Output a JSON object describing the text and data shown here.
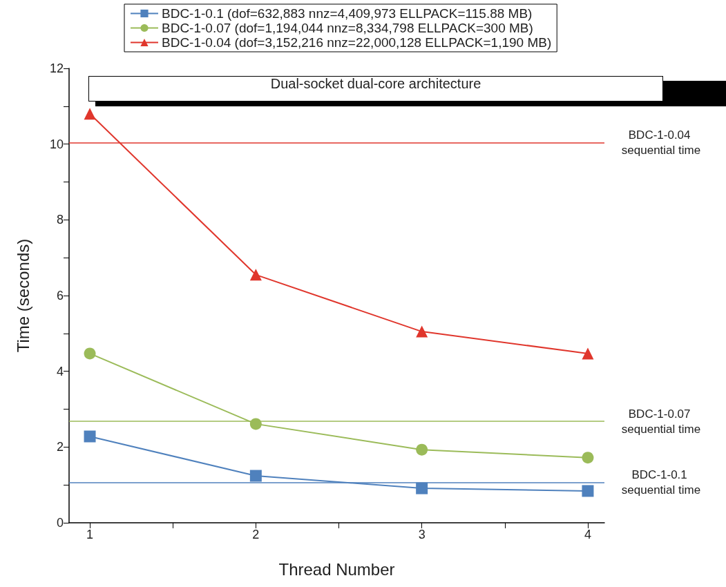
{
  "chart_data": {
    "type": "line",
    "xlabel": "Thread Number",
    "ylabel": "Time (seconds)",
    "x": [
      1,
      2,
      3,
      4
    ],
    "series": [
      {
        "name": "BDC-1-0.1 (dof=632,883 nnz=4,409,973 ELLPACK=115.88 MB)",
        "color": "#4f81bd",
        "marker": "square",
        "values": [
          2.28,
          1.24,
          0.91,
          0.84
        ]
      },
      {
        "name": "BDC-1-0.07 (dof=1,194,044 nnz=8,334,798 ELLPACK=300 MB)",
        "color": "#9bbb59",
        "marker": "circle",
        "values": [
          4.47,
          2.61,
          1.93,
          1.72
        ]
      },
      {
        "name": "BDC-1-0.04 (dof=3,152,216 nnz=22,000,128 ELLPACK=1,190 MB)",
        "color": "#e0362c",
        "marker": "triangle",
        "values": [
          10.8,
          6.55,
          5.05,
          4.47
        ]
      }
    ],
    "ref_lines": [
      {
        "axis": "y",
        "value": 10.04,
        "label": "BDC-1-0.04 sequential time",
        "color": "#e0362c"
      },
      {
        "axis": "y",
        "value": 2.68,
        "label": "BDC-1-0.07 sequential time",
        "color": "#9bbb59"
      },
      {
        "axis": "y",
        "value": 1.06,
        "label": "BDC-1-0.1 sequential time",
        "color": "#4f81bd"
      }
    ],
    "annotations": [
      "Dual-socket dual-core architecture"
    ],
    "xlim": [
      0.875,
      4.1
    ],
    "xticks": [
      1,
      {
        "value": 1.5,
        "label": null
      },
      2,
      {
        "value": 2.5,
        "label": null
      },
      3,
      {
        "value": 3.5,
        "label": null
      },
      4
    ],
    "ylim": [
      0,
      12
    ],
    "yticks": [
      0,
      {
        "value": 1,
        "label": null
      },
      2,
      {
        "value": 3,
        "label": null
      },
      4,
      {
        "value": 5,
        "label": null
      },
      6,
      {
        "value": 7,
        "label": null
      },
      8,
      {
        "value": 9,
        "label": null
      },
      10,
      {
        "value": 11,
        "label": null
      },
      12
    ],
    "legend": "top",
    "line_style": "solid",
    "grid": false
  }
}
